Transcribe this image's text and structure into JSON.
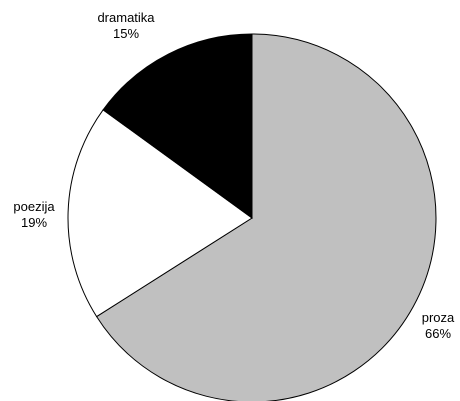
{
  "chart_data": {
    "type": "pie",
    "title": "",
    "start_angle_deg": 0,
    "direction": "clockwise",
    "slices": [
      {
        "label": "proza",
        "percent_label": "66%",
        "value": 66,
        "color": "#c0c0c0"
      },
      {
        "label": "poezija",
        "percent_label": "19%",
        "value": 19,
        "color": "#ffffff"
      },
      {
        "label": "dramatika",
        "percent_label": "15%",
        "value": 15,
        "color": "#000000"
      }
    ],
    "stroke_color": "#000000",
    "legend": "none"
  }
}
